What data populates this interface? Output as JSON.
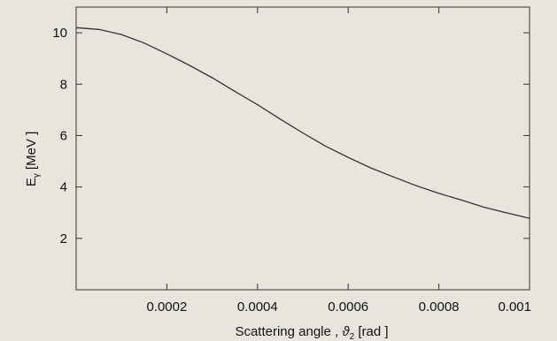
{
  "chart_data": {
    "type": "line",
    "title": "",
    "xlabel": {
      "main": "Scattering  angle , ",
      "symbol": "ϑ",
      "subscript": "2",
      "unit": " [rad ]"
    },
    "ylabel": {
      "symbol": "E",
      "subscript": "γ",
      "unit": "  [MeV ]"
    },
    "xlim": [
      0,
      0.001
    ],
    "ylim": [
      0,
      11
    ],
    "x_ticks": [
      {
        "value": 0.0002,
        "label": "0.0002"
      },
      {
        "value": 0.0004,
        "label": "0.0004"
      },
      {
        "value": 0.0006,
        "label": "0.0006"
      },
      {
        "value": 0.0008,
        "label": "0.0008"
      },
      {
        "value": 0.001,
        "label": "0.001"
      }
    ],
    "y_ticks": [
      {
        "value": 2,
        "label": "2"
      },
      {
        "value": 4,
        "label": "4"
      },
      {
        "value": 6,
        "label": "6"
      },
      {
        "value": 8,
        "label": "8"
      },
      {
        "value": 10,
        "label": "10"
      }
    ],
    "grid": false,
    "legend": "none",
    "line_color": "#333333",
    "axis_color": "#333333",
    "background": "#e8e4de",
    "series": [
      {
        "x": [
          0,
          5e-05,
          0.0001,
          0.00015,
          0.0002,
          0.00025,
          0.0003,
          0.00035,
          0.0004,
          0.00045,
          0.0005,
          0.00055,
          0.0006,
          0.00065,
          0.0007,
          0.00075,
          0.0008,
          0.00085,
          0.0009,
          0.00095,
          0.001
        ],
        "values": [
          10.2,
          10.13,
          9.93,
          9.6,
          9.18,
          8.73,
          8.25,
          7.72,
          7.2,
          6.64,
          6.1,
          5.59,
          5.15,
          4.74,
          4.39,
          4.05,
          3.75,
          3.49,
          3.21,
          2.99,
          2.78
        ]
      }
    ]
  }
}
